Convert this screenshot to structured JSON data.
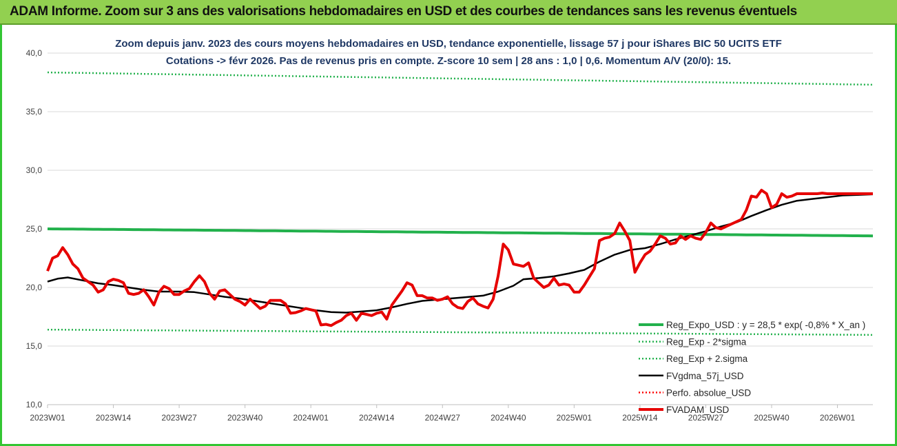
{
  "banner": {
    "title": "ADAM Informe. Zoom sur 3 ans des valorisations hebdomadaires en USD et des courbes de tendances sans les revenus éventuels",
    "color": "#92d050"
  },
  "chart_data": {
    "type": "line",
    "title_lines": [
      "Zoom depuis janv. 2023 des cours moyens hebdomadaires en USD, tendance exponentielle, lissage 57 j pour iShares BIC 50 UCITS ETF",
      "Cotations -> févr 2026. Pas de revenus pris en compte. Z-score 10 sem | 28 ans : 1,0 | 0,6. Momentum A/V (20/0): 15."
    ],
    "ylim": [
      10,
      40
    ],
    "yticks": [
      "10,0",
      "15,0",
      "20,0",
      "25,0",
      "30,0",
      "35,0",
      "40,0"
    ],
    "ytick_values": [
      10,
      15,
      20,
      25,
      30,
      35,
      40
    ],
    "xtick_labels": [
      "2023W01",
      "2023W14",
      "2023W27",
      "2023W40",
      "2024W01",
      "2024W14",
      "2024W27",
      "2024W40",
      "2025W01",
      "2025W14",
      "2025W27",
      "2025W40",
      "2026W01"
    ],
    "xtick_weeks": [
      0,
      13,
      26,
      39,
      52,
      65,
      78,
      91,
      104,
      117,
      130,
      143,
      156
    ],
    "x_unit": "week index since 2023W01",
    "x_max": 163,
    "legend_position": "right",
    "series": [
      {
        "name": "Reg_Expo_USD : y = 28,5 * exp( -0,8% *  X_an )",
        "color": "#22b14c",
        "style": "solid-thick",
        "start": 25.0,
        "end": 24.4
      },
      {
        "name": "Reg_Exp - 2*sigma",
        "color": "#22b14c",
        "style": "dotted",
        "start": 16.4,
        "end": 15.95
      },
      {
        "name": "Reg_Exp + 2.sigma",
        "color": "#22b14c",
        "style": "dotted",
        "start": 38.35,
        "end": 37.3
      },
      {
        "name": "FVgdma_57j_USD",
        "color": "#000000",
        "style": "solid",
        "points": [
          [
            0,
            20.5
          ],
          [
            2,
            20.75
          ],
          [
            4,
            20.85
          ],
          [
            7,
            20.6
          ],
          [
            10,
            20.35
          ],
          [
            13,
            20.2
          ],
          [
            16,
            20.0
          ],
          [
            19,
            19.8
          ],
          [
            22,
            19.65
          ],
          [
            26,
            19.65
          ],
          [
            29,
            19.6
          ],
          [
            32,
            19.4
          ],
          [
            35,
            19.2
          ],
          [
            38,
            19.05
          ],
          [
            41,
            18.85
          ],
          [
            44,
            18.65
          ],
          [
            47,
            18.45
          ],
          [
            50,
            18.25
          ],
          [
            53,
            18.05
          ],
          [
            56,
            17.9
          ],
          [
            59,
            17.85
          ],
          [
            62,
            17.95
          ],
          [
            65,
            18.05
          ],
          [
            68,
            18.3
          ],
          [
            71,
            18.6
          ],
          [
            74,
            18.85
          ],
          [
            78,
            19.0
          ],
          [
            82,
            19.15
          ],
          [
            86,
            19.3
          ],
          [
            89,
            19.65
          ],
          [
            92,
            20.15
          ],
          [
            94,
            20.7
          ],
          [
            97,
            20.8
          ],
          [
            100,
            20.95
          ],
          [
            103,
            21.2
          ],
          [
            106,
            21.5
          ],
          [
            109,
            22.2
          ],
          [
            112,
            22.8
          ],
          [
            115,
            23.2
          ],
          [
            118,
            23.35
          ],
          [
            121,
            23.7
          ],
          [
            124,
            24.1
          ],
          [
            127,
            24.45
          ],
          [
            130,
            24.8
          ],
          [
            133,
            25.2
          ],
          [
            136,
            25.55
          ],
          [
            139,
            26.1
          ],
          [
            142,
            26.6
          ],
          [
            145,
            27.05
          ],
          [
            148,
            27.4
          ],
          [
            151,
            27.55
          ],
          [
            154,
            27.7
          ],
          [
            157,
            27.85
          ],
          [
            160,
            27.9
          ],
          [
            163,
            27.95
          ]
        ]
      },
      {
        "name": "Perfo. absolue_USD",
        "color": "#ff0000",
        "style": "dotted",
        "points": []
      },
      {
        "name": "FVADAM_USD",
        "color": "#e60000",
        "style": "solid-thick",
        "points": [
          [
            0,
            21.4
          ],
          [
            1,
            22.5
          ],
          [
            2,
            22.7
          ],
          [
            3,
            23.4
          ],
          [
            4,
            22.8
          ],
          [
            5,
            22.0
          ],
          [
            6,
            21.6
          ],
          [
            7,
            20.8
          ],
          [
            8,
            20.5
          ],
          [
            9,
            20.2
          ],
          [
            10,
            19.6
          ],
          [
            11,
            19.8
          ],
          [
            12,
            20.5
          ],
          [
            13,
            20.7
          ],
          [
            14,
            20.6
          ],
          [
            15,
            20.4
          ],
          [
            16,
            19.5
          ],
          [
            17,
            19.4
          ],
          [
            18,
            19.5
          ],
          [
            19,
            19.8
          ],
          [
            20,
            19.2
          ],
          [
            21,
            18.5
          ],
          [
            22,
            19.6
          ],
          [
            23,
            20.1
          ],
          [
            24,
            19.9
          ],
          [
            25,
            19.4
          ],
          [
            26,
            19.4
          ],
          [
            27,
            19.7
          ],
          [
            28,
            19.9
          ],
          [
            29,
            20.5
          ],
          [
            30,
            21.0
          ],
          [
            31,
            20.5
          ],
          [
            32,
            19.5
          ],
          [
            33,
            19.0
          ],
          [
            34,
            19.7
          ],
          [
            35,
            19.8
          ],
          [
            36,
            19.4
          ],
          [
            37,
            19.0
          ],
          [
            38,
            18.8
          ],
          [
            39,
            18.5
          ],
          [
            40,
            19.0
          ],
          [
            41,
            18.6
          ],
          [
            42,
            18.2
          ],
          [
            43,
            18.4
          ],
          [
            44,
            18.9
          ],
          [
            45,
            18.9
          ],
          [
            46,
            18.9
          ],
          [
            47,
            18.6
          ],
          [
            48,
            17.8
          ],
          [
            49,
            17.85
          ],
          [
            50,
            18.0
          ],
          [
            51,
            18.2
          ],
          [
            52,
            18.1
          ],
          [
            53,
            18.0
          ],
          [
            54,
            16.8
          ],
          [
            55,
            16.85
          ],
          [
            56,
            16.75
          ],
          [
            57,
            17.0
          ],
          [
            58,
            17.2
          ],
          [
            59,
            17.6
          ],
          [
            60,
            17.8
          ],
          [
            61,
            17.2
          ],
          [
            62,
            17.8
          ],
          [
            63,
            17.7
          ],
          [
            64,
            17.6
          ],
          [
            65,
            17.8
          ],
          [
            66,
            17.9
          ],
          [
            67,
            17.3
          ],
          [
            68,
            18.5
          ],
          [
            69,
            19.1
          ],
          [
            70,
            19.7
          ],
          [
            71,
            20.4
          ],
          [
            72,
            20.2
          ],
          [
            73,
            19.3
          ],
          [
            74,
            19.3
          ],
          [
            75,
            19.1
          ],
          [
            76,
            19.1
          ],
          [
            77,
            18.9
          ],
          [
            78,
            19.0
          ],
          [
            79,
            19.2
          ],
          [
            80,
            18.6
          ],
          [
            81,
            18.3
          ],
          [
            82,
            18.2
          ],
          [
            83,
            18.8
          ],
          [
            84,
            19.1
          ],
          [
            85,
            18.6
          ],
          [
            86,
            18.4
          ],
          [
            87,
            18.25
          ],
          [
            88,
            19.0
          ],
          [
            89,
            21.0
          ],
          [
            90,
            23.7
          ],
          [
            91,
            23.2
          ],
          [
            92,
            22.0
          ],
          [
            93,
            21.9
          ],
          [
            94,
            21.8
          ],
          [
            95,
            22.1
          ],
          [
            96,
            20.8
          ],
          [
            97,
            20.4
          ],
          [
            98,
            20.0
          ],
          [
            99,
            20.2
          ],
          [
            100,
            20.8
          ],
          [
            101,
            20.2
          ],
          [
            102,
            20.3
          ],
          [
            103,
            20.2
          ],
          [
            104,
            19.6
          ],
          [
            105,
            19.6
          ],
          [
            106,
            20.2
          ],
          [
            107,
            20.9
          ],
          [
            108,
            21.6
          ],
          [
            109,
            24.0
          ],
          [
            110,
            24.2
          ],
          [
            111,
            24.3
          ],
          [
            112,
            24.6
          ],
          [
            113,
            25.5
          ],
          [
            114,
            24.8
          ],
          [
            115,
            24.0
          ],
          [
            116,
            21.3
          ],
          [
            117,
            22.1
          ],
          [
            118,
            22.8
          ],
          [
            119,
            23.1
          ],
          [
            120,
            23.7
          ],
          [
            121,
            24.4
          ],
          [
            122,
            24.2
          ],
          [
            123,
            23.7
          ],
          [
            124,
            23.8
          ],
          [
            125,
            24.4
          ],
          [
            126,
            24.1
          ],
          [
            127,
            24.4
          ],
          [
            128,
            24.2
          ],
          [
            129,
            24.1
          ],
          [
            130,
            24.7
          ],
          [
            131,
            25.5
          ],
          [
            132,
            25.1
          ],
          [
            133,
            25.0
          ],
          [
            134,
            25.2
          ],
          [
            135,
            25.4
          ],
          [
            136,
            25.6
          ],
          [
            137,
            25.8
          ],
          [
            138,
            26.6
          ],
          [
            139,
            27.8
          ],
          [
            140,
            27.7
          ],
          [
            141,
            28.3
          ],
          [
            142,
            28.0
          ],
          [
            143,
            26.8
          ],
          [
            144,
            27.1
          ],
          [
            145,
            28.0
          ],
          [
            146,
            27.7
          ],
          [
            147,
            27.8
          ],
          [
            148,
            28.0
          ],
          [
            149,
            28.0
          ],
          [
            150,
            28.0
          ],
          [
            151,
            28.0
          ],
          [
            152,
            28.0
          ],
          [
            153,
            28.05
          ],
          [
            154,
            28.0
          ],
          [
            155,
            28.0
          ],
          [
            156,
            28.0
          ],
          [
            157,
            28.0
          ],
          [
            158,
            28.0
          ],
          [
            159,
            28.0
          ],
          [
            160,
            28.0
          ],
          [
            161,
            28.0
          ],
          [
            162,
            28.0
          ],
          [
            163,
            28.0
          ]
        ]
      }
    ]
  }
}
